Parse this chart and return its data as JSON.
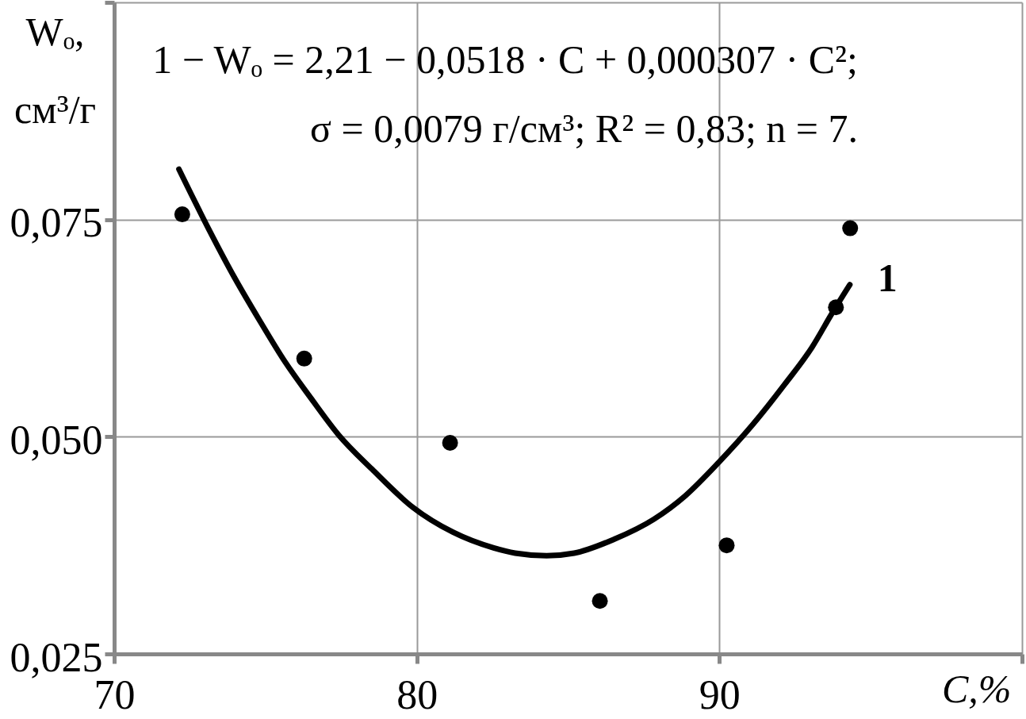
{
  "chart_data": {
    "type": "scatter",
    "xlabel": "C,%",
    "ylabel": "Wₒ,\nсм³/г",
    "annotations": [
      "1 − Wₒ = 2,21 − 0,0518 · C + 0,000307 · C²;",
      "σ = 0,0079 г/см³;  R² = 0,83;  n = 7."
    ],
    "xlim": [
      70,
      100
    ],
    "xticks": [
      70,
      80,
      90,
      {
        "value": 100,
        "label": null
      }
    ],
    "ylim": [
      0.025,
      0.1
    ],
    "yticks": [
      {
        "value": 0.025,
        "label": "0,025"
      },
      {
        "value": 0.05,
        "label": "0,050"
      },
      {
        "value": 0.075,
        "label": "0,075"
      },
      {
        "value": 0.1,
        "label": null
      }
    ],
    "grid": true,
    "series": [
      {
        "color": "#000000",
        "marker": "circle",
        "x": [
          72.25,
          76.28,
          81.1,
          86.05,
          90.24,
          93.85,
          94.32
        ],
        "values": [
          0.0756,
          0.059,
          0.0493,
          0.0311,
          0.0375,
          0.0649,
          0.074
        ]
      },
      {
        "type": "line",
        "name": "1",
        "color": "#000000",
        "line_style": "solid",
        "x": [
          72.14,
          73.14,
          73.98,
          74.82,
          75.65,
          76.49,
          77.42,
          78.51,
          79.86,
          81.2,
          82.54,
          83.25,
          84.29,
          85.2,
          86.52,
          87.83,
          88.87,
          89.99,
          91.1,
          92.15,
          93.06,
          93.72,
          94.31
        ],
        "values": [
          0.0808,
          0.0738,
          0.0683,
          0.0633,
          0.0586,
          0.0545,
          0.0502,
          0.0463,
          0.0419,
          0.039,
          0.0372,
          0.0366,
          0.0363,
          0.0366,
          0.0382,
          0.0405,
          0.0432,
          0.0471,
          0.0514,
          0.056,
          0.0603,
          0.0642,
          0.0675
        ]
      }
    ]
  }
}
